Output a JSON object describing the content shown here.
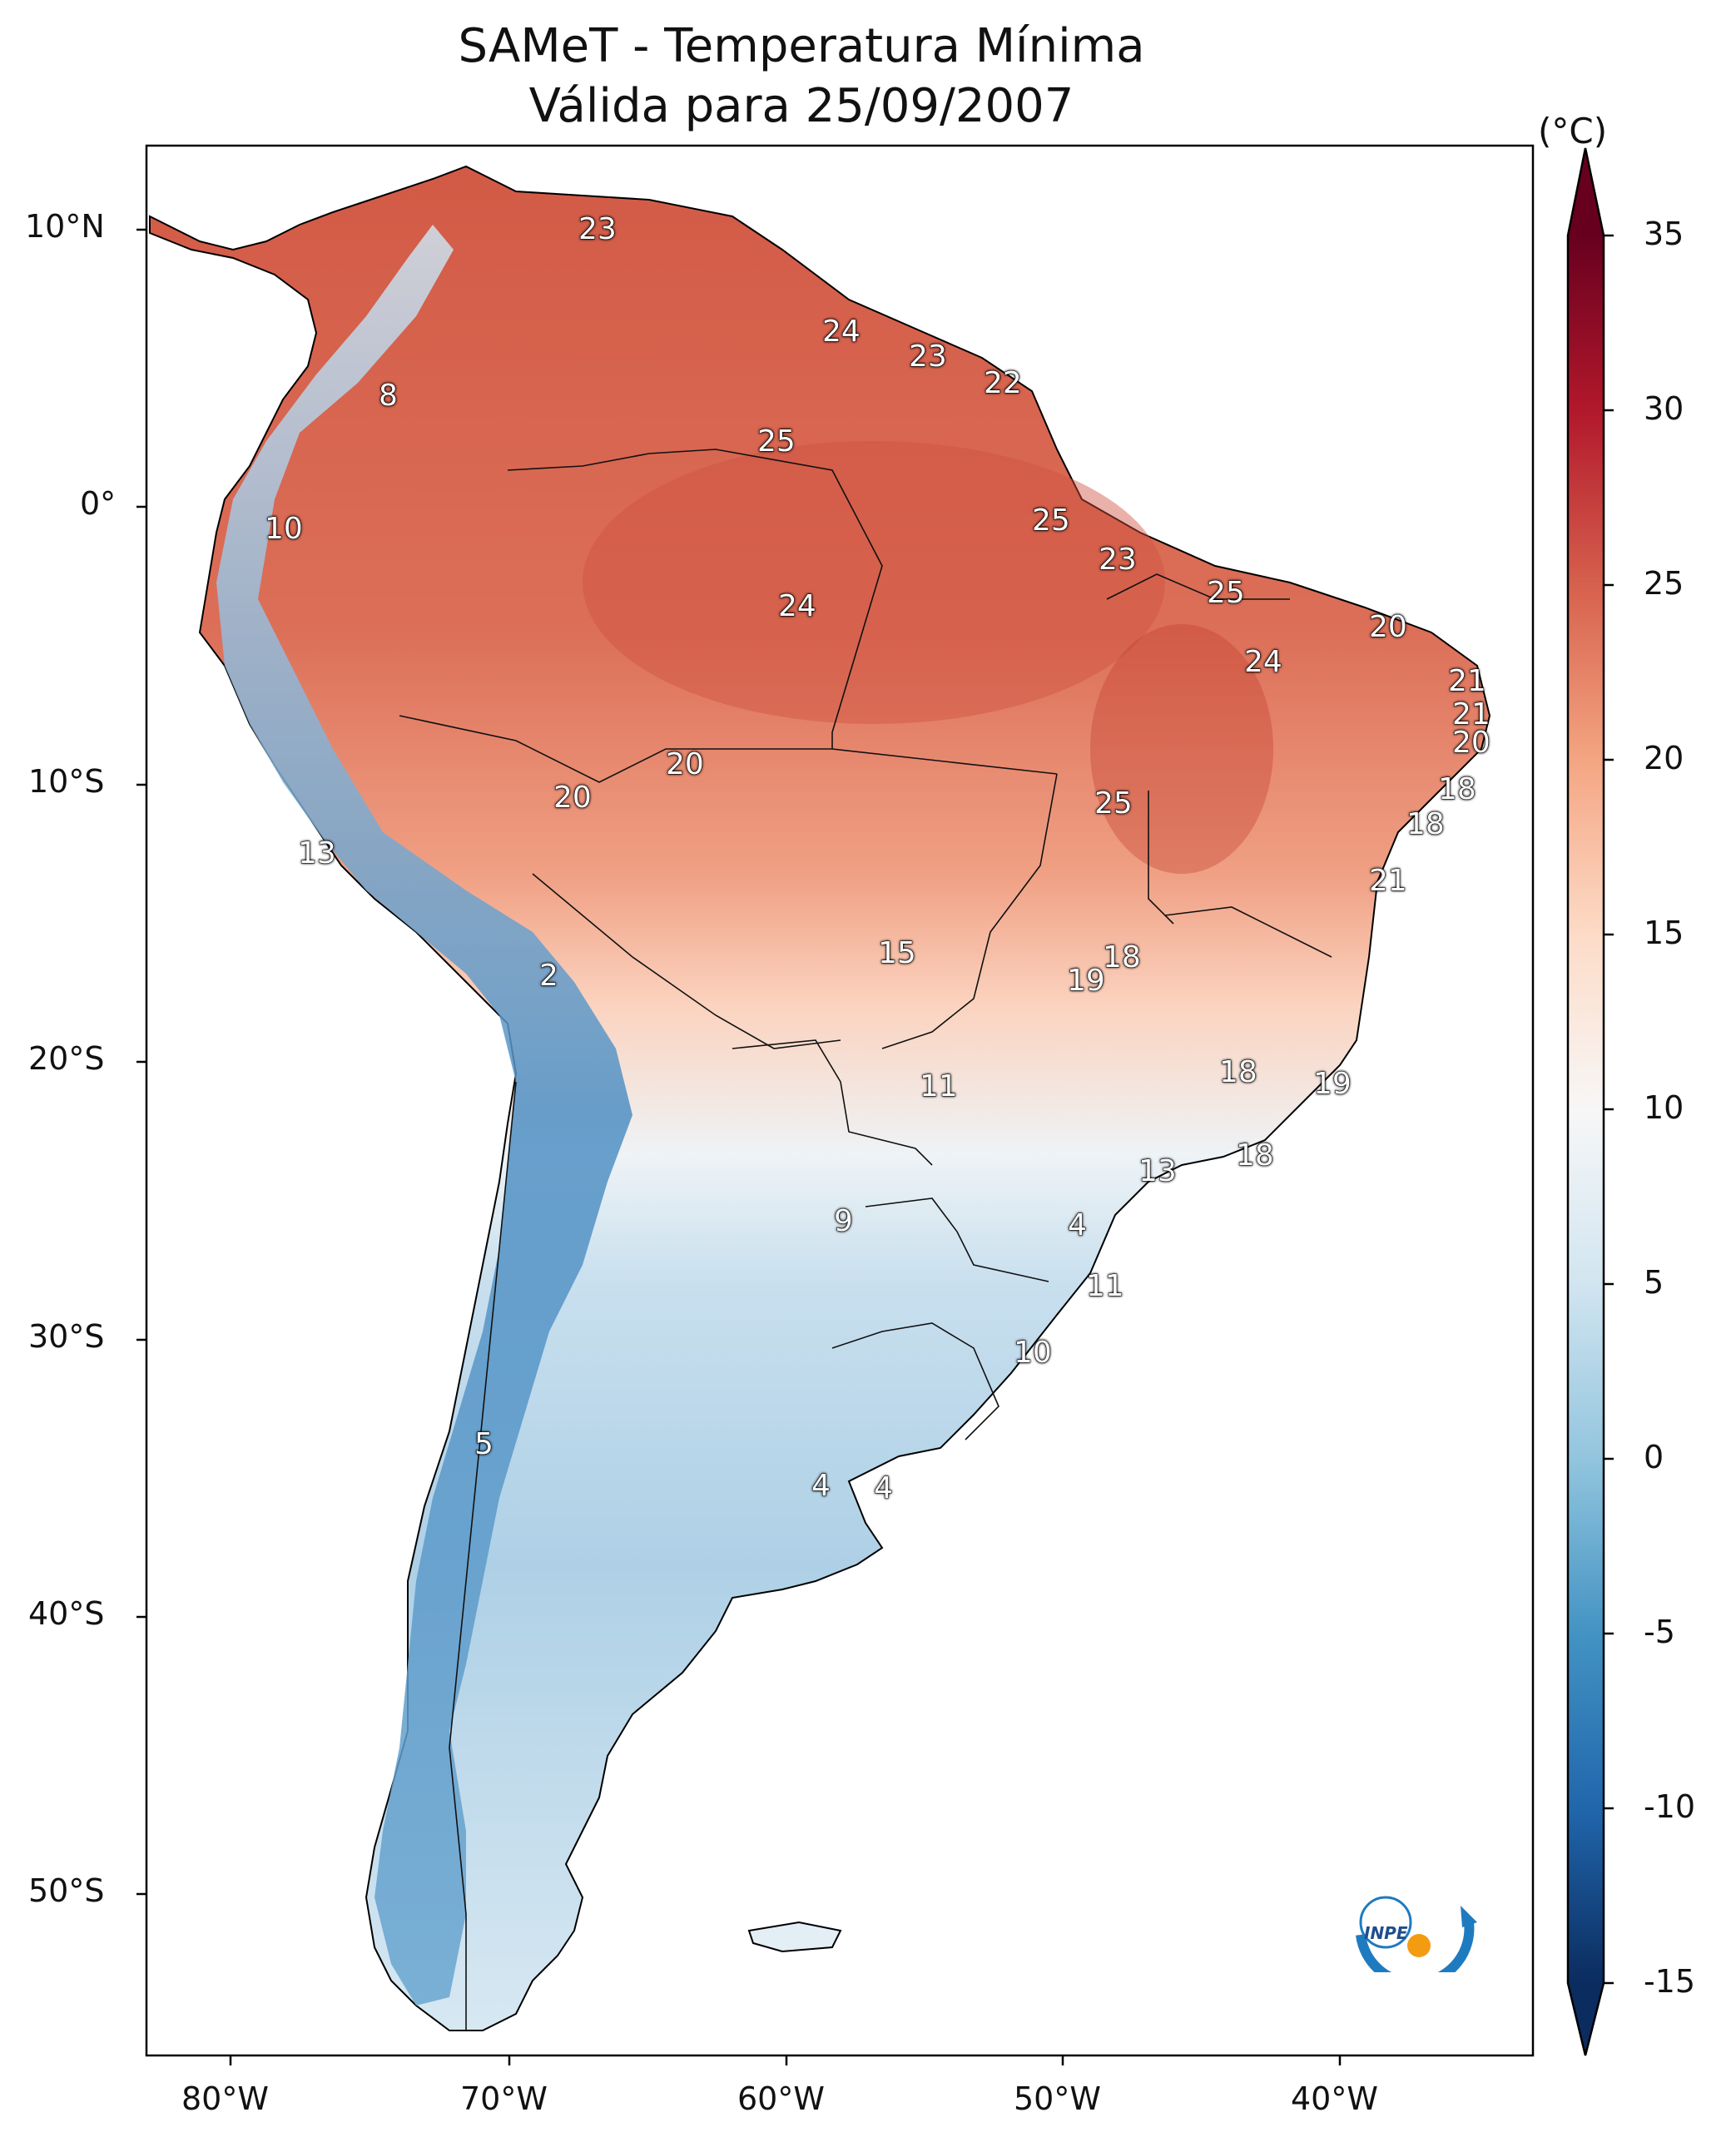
{
  "title": {
    "line1": "SAMeT - Temperatura Mínima",
    "line2": "Válida para 25/09/2007"
  },
  "colorbar": {
    "unit": "(°C)",
    "ticks": [
      "35",
      "30",
      "25",
      "20",
      "15",
      "10",
      "5",
      "0",
      "-5",
      "-10",
      "-15"
    ],
    "tick_values": [
      35,
      30,
      25,
      20,
      15,
      10,
      5,
      0,
      -5,
      -10,
      -15
    ],
    "range": [
      -15,
      35
    ],
    "colormap": "RdBu_r",
    "colors": [
      "#0b2c5f",
      "#2166ac",
      "#4393c3",
      "#92c5de",
      "#d1e5f0",
      "#f7f7f7",
      "#fddbc7",
      "#f4a582",
      "#d6604d",
      "#b2182b",
      "#67001f"
    ]
  },
  "axes": {
    "lon_labels": [
      "80°W",
      "70°W",
      "60°W",
      "50°W",
      "40°W"
    ],
    "lat_labels": [
      "10°N",
      "0°",
      "10°S",
      "20°S",
      "30°S",
      "40°S",
      "50°S"
    ]
  },
  "contour_labels": [
    {
      "text": "23"
    },
    {
      "text": "24"
    },
    {
      "text": "23"
    },
    {
      "text": "22"
    },
    {
      "text": "8"
    },
    {
      "text": "25"
    },
    {
      "text": "10"
    },
    {
      "text": "25"
    },
    {
      "text": "23"
    },
    {
      "text": "25"
    },
    {
      "text": "24"
    },
    {
      "text": "20"
    },
    {
      "text": "24"
    },
    {
      "text": "21"
    },
    {
      "text": "21"
    },
    {
      "text": "20"
    },
    {
      "text": "20"
    },
    {
      "text": "20"
    },
    {
      "text": "18"
    },
    {
      "text": "25"
    },
    {
      "text": "18"
    },
    {
      "text": "13"
    },
    {
      "text": "21"
    },
    {
      "text": "15"
    },
    {
      "text": "18"
    },
    {
      "text": "2"
    },
    {
      "text": "19"
    },
    {
      "text": "11"
    },
    {
      "text": "18"
    },
    {
      "text": "19"
    },
    {
      "text": "18"
    },
    {
      "text": "13"
    },
    {
      "text": "9"
    },
    {
      "text": "4"
    },
    {
      "text": "11"
    },
    {
      "text": "10"
    },
    {
      "text": "5"
    },
    {
      "text": "4"
    },
    {
      "text": "4"
    }
  ],
  "logo": {
    "text": "INPE"
  }
}
